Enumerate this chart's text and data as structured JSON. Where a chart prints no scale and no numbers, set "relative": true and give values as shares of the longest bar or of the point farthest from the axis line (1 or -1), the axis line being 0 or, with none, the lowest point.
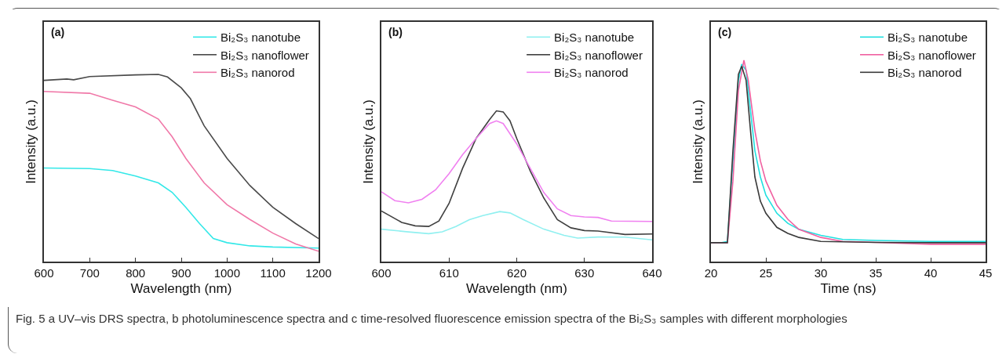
{
  "chart_data": [
    {
      "type": "line",
      "title": "(a)",
      "xlabel": "Wavelength (nm)",
      "ylabel": "Intensity (a.u.)",
      "relative": true,
      "xlim": [
        600,
        1200
      ],
      "xticks": [
        600,
        700,
        800,
        900,
        1000,
        1100,
        1200
      ],
      "legend": "top right",
      "grid": false,
      "annotations": [
        "Fig. 5 a UV–vis DRS spectra, b photoluminescence spectra and c time-resolved fluorescence emission spectra of the Bi₂S₃ samples with different morphologies"
      ],
      "series": [
        {
          "name": "Bi₂S₃ nanotube",
          "color": "#33e8e8",
          "x": [
            600,
            700,
            750,
            800,
            850,
            880,
            910,
            940,
            970,
            1000,
            1050,
            1100,
            1200
          ],
          "values": [
            0.5,
            0.497,
            0.486,
            0.457,
            0.42,
            0.37,
            0.29,
            0.203,
            0.123,
            0.101,
            0.084,
            0.078,
            0.072
          ]
        },
        {
          "name": "Bi₂S₃ nanoflower",
          "color": "#4a4a4a",
          "x": [
            600,
            650,
            665,
            700,
            800,
            850,
            870,
            900,
            920,
            950,
            1000,
            1050,
            1100,
            1150,
            1200
          ],
          "values": [
            0.968,
            0.975,
            0.971,
            0.988,
            0.997,
            1,
            0.986,
            0.928,
            0.87,
            0.725,
            0.551,
            0.406,
            0.29,
            0.203,
            0.123
          ]
        },
        {
          "name": "Bi₂S₃ nanorod",
          "color": "#f078a8",
          "x": [
            600,
            700,
            750,
            800,
            850,
            880,
            910,
            950,
            1000,
            1050,
            1100,
            1150,
            1200
          ],
          "values": [
            0.909,
            0.899,
            0.862,
            0.826,
            0.761,
            0.667,
            0.551,
            0.42,
            0.304,
            0.225,
            0.152,
            0.094,
            0.055
          ]
        }
      ]
    },
    {
      "type": "line",
      "title": "(b)",
      "xlabel": "Wavelength (nm)",
      "ylabel": "Intensity (a.u.)",
      "relative": true,
      "xlim": [
        600,
        640
      ],
      "xticks": [
        600,
        610,
        620,
        630,
        640
      ],
      "legend": "top right",
      "grid": false,
      "series": [
        {
          "name": "Bi₂S₃ nanotube",
          "color": "#90f0f0",
          "x": [
            600,
            604,
            607,
            609,
            611,
            613,
            615,
            617.5,
            619,
            621,
            624,
            627,
            629,
            632,
            636,
            640
          ],
          "values": [
            0.215,
            0.197,
            0.185,
            0.197,
            0.233,
            0.278,
            0.305,
            0.332,
            0.323,
            0.278,
            0.215,
            0.174,
            0.156,
            0.163,
            0.162,
            0.144
          ]
        },
        {
          "name": "Bi₂S₃ nanoflower",
          "color": "#404040",
          "x": [
            600,
            603,
            605,
            607,
            608.5,
            610,
            612,
            614,
            616,
            617,
            618,
            619,
            620,
            622,
            624,
            626,
            628,
            630,
            632,
            636,
            640
          ],
          "values": [
            0.336,
            0.26,
            0.237,
            0.233,
            0.269,
            0.386,
            0.619,
            0.817,
            0.943,
            1,
            0.993,
            0.934,
            0.817,
            0.601,
            0.422,
            0.278,
            0.224,
            0.206,
            0.203,
            0.18,
            0.183
          ]
        },
        {
          "name": "Bi₂S₃ nanorod",
          "color": "#f080f0",
          "x": [
            600,
            602,
            604,
            606,
            608,
            610,
            612,
            614,
            616,
            617,
            618,
            620,
            622,
            624,
            626,
            628,
            630,
            632,
            634,
            640
          ],
          "values": [
            0.463,
            0.404,
            0.39,
            0.413,
            0.476,
            0.583,
            0.709,
            0.817,
            0.916,
            0.934,
            0.916,
            0.781,
            0.619,
            0.458,
            0.35,
            0.305,
            0.296,
            0.293,
            0.269,
            0.266
          ]
        }
      ]
    },
    {
      "type": "line",
      "title": "(c)",
      "xlabel": "Time (ns)",
      "ylabel": "Intensity (a.u.)",
      "relative": true,
      "xlim": [
        20,
        45
      ],
      "xticks": [
        20,
        25,
        30,
        35,
        40,
        45
      ],
      "legend": "top right",
      "grid": false,
      "series": [
        {
          "name": "Bi₂S₃ nanotube",
          "color": "#20e0e0",
          "x": [
            20,
            21,
            21.5,
            22,
            22.5,
            22.8,
            23.2,
            23.6,
            24,
            24.5,
            25,
            26,
            27,
            28,
            30,
            32,
            35,
            40,
            45
          ],
          "values": [
            0.094,
            0.094,
            0.1,
            0.5,
            0.9,
            0.98,
            0.95,
            0.75,
            0.55,
            0.42,
            0.33,
            0.24,
            0.19,
            0.16,
            0.13,
            0.11,
            0.105,
            0.1,
            0.1
          ]
        },
        {
          "name": "Bi₂S₃ nanoflower",
          "color": "#f060a0",
          "x": [
            20,
            21.5,
            22,
            22.5,
            23,
            23.4,
            24,
            24.5,
            25,
            25.5,
            26,
            27,
            28,
            30,
            32,
            35,
            40,
            45
          ],
          "values": [
            0.094,
            0.094,
            0.4,
            0.85,
            1,
            0.9,
            0.65,
            0.5,
            0.4,
            0.34,
            0.28,
            0.21,
            0.16,
            0.12,
            0.1,
            0.095,
            0.086,
            0.086
          ]
        },
        {
          "name": "Bi₂S₃ nanorod",
          "color": "#3a3a3a",
          "x": [
            20,
            21.5,
            22,
            22.5,
            22.8,
            23.2,
            23.6,
            24,
            24.5,
            25,
            26,
            27,
            28,
            30,
            35,
            40,
            45
          ],
          "values": [
            0.094,
            0.094,
            0.55,
            0.93,
            0.97,
            0.9,
            0.65,
            0.42,
            0.3,
            0.24,
            0.17,
            0.14,
            0.12,
            0.1,
            0.095,
            0.094,
            0.094
          ]
        }
      ]
    }
  ]
}
